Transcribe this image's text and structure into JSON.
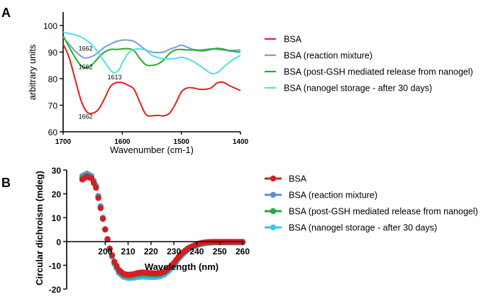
{
  "chart_data": [
    {
      "panel_label": "A",
      "type": "line",
      "xlabel": "Wavenumber (cm-1)",
      "ylabel": "arbitrary units",
      "xlim": [
        1700,
        1400
      ],
      "ylim": [
        60,
        100
      ],
      "x_reversed": true,
      "xticks": [
        1700,
        1600,
        1500,
        1400
      ],
      "yticks": [
        60,
        70,
        80,
        90,
        100
      ],
      "legend": "right",
      "series": [
        {
          "name": "BSA",
          "color": "#e0201d",
          "x": [
            1700,
            1690,
            1680,
            1670,
            1660,
            1650,
            1640,
            1630,
            1620,
            1610,
            1600,
            1590,
            1580,
            1570,
            1560,
            1550,
            1540,
            1530,
            1520,
            1510,
            1500,
            1490,
            1480,
            1470,
            1460,
            1450,
            1440,
            1430,
            1420,
            1410,
            1400
          ],
          "y": [
            93,
            88,
            80,
            72,
            67.5,
            67,
            68.5,
            72.5,
            77,
            78.5,
            78.5,
            77.5,
            76,
            71,
            66.5,
            66,
            66.2,
            66,
            67,
            70.5,
            75,
            76.5,
            76.5,
            76,
            76,
            76.5,
            78.3,
            78.7,
            77.5,
            76.5,
            75.5
          ]
        },
        {
          "name": "BSA (reaction mixture)",
          "color": "#6f9fdc",
          "x": [
            1700,
            1690,
            1680,
            1670,
            1662,
            1650,
            1640,
            1630,
            1620,
            1610,
            1600,
            1590,
            1580,
            1570,
            1560,
            1550,
            1540,
            1530,
            1520,
            1510,
            1500,
            1490,
            1480,
            1470,
            1460,
            1450,
            1440,
            1430,
            1420,
            1410,
            1400
          ],
          "y": [
            95.5,
            93,
            90.5,
            88.5,
            87.8,
            88.5,
            90,
            91.8,
            93,
            94,
            94.5,
            94.5,
            94,
            92.5,
            90.8,
            90,
            89.8,
            90,
            91,
            91.8,
            92.6,
            91.8,
            91,
            90.8,
            91,
            91.2,
            91,
            90.8,
            90.6,
            90.7,
            90.8
          ]
        },
        {
          "name": "BSA (post-GSH mediated release from nanogel)",
          "color": "#22b022",
          "x": [
            1700,
            1690,
            1680,
            1670,
            1662,
            1650,
            1640,
            1630,
            1620,
            1610,
            1600,
            1590,
            1580,
            1570,
            1560,
            1550,
            1540,
            1530,
            1520,
            1510,
            1500,
            1490,
            1480,
            1470,
            1460,
            1450,
            1440,
            1430,
            1420,
            1410,
            1400
          ],
          "y": [
            96,
            92,
            88,
            85,
            84,
            85.5,
            88,
            90,
            91,
            91,
            91.2,
            91.3,
            90.5,
            87.5,
            85.2,
            85,
            85.5,
            87,
            89.5,
            90.8,
            91,
            90.8,
            90.8,
            90.5,
            90.5,
            91,
            91.4,
            91.2,
            90.5,
            90.2,
            90
          ]
        },
        {
          "name": "BSA (nanogel storage - after 30 days)",
          "color": "#4fe0e2",
          "x": [
            1700,
            1690,
            1680,
            1670,
            1660,
            1650,
            1640,
            1630,
            1620,
            1613,
            1605,
            1600,
            1590,
            1580,
            1570,
            1560,
            1550,
            1540,
            1530,
            1520,
            1510,
            1500,
            1490,
            1480,
            1470,
            1460,
            1450,
            1440,
            1430,
            1420,
            1410,
            1400
          ],
          "y": [
            97.5,
            97,
            96.5,
            95.7,
            94.3,
            92.5,
            89.5,
            86.3,
            83.2,
            82.2,
            83.5,
            86,
            89.5,
            91,
            91.2,
            90.6,
            88.8,
            88,
            87.5,
            87.4,
            87.6,
            88,
            87.5,
            86.5,
            85,
            83.5,
            82,
            82.2,
            84,
            86,
            87.5,
            88.8
          ]
        }
      ],
      "annotations": [
        {
          "text": "1662",
          "x": 1662,
          "y": 90.5
        },
        {
          "text": "1662",
          "x": 1662,
          "y": 83.6
        },
        {
          "text": "1613",
          "x": 1613,
          "y": 79.7
        },
        {
          "text": "1662",
          "x": 1662,
          "y": 65
        }
      ]
    },
    {
      "panel_label": "B",
      "type": "scatter",
      "xlabel": "Wavelength (nm)",
      "ylabel": "Circular dichroism (mdeg)",
      "xlim": [
        190,
        260
      ],
      "ylim": [
        -20,
        30
      ],
      "xticks": [
        200,
        210,
        220,
        230,
        240,
        250,
        260
      ],
      "yticks": [
        -20,
        -10,
        0,
        10,
        20,
        30
      ],
      "legend": "right",
      "series": [
        {
          "name": "BSA",
          "color": "#d11f25",
          "x": [
            190,
            192,
            194,
            196,
            198,
            200,
            202,
            204,
            206,
            208,
            210,
            212,
            214,
            216,
            218,
            220,
            222,
            224,
            226,
            228,
            230,
            232,
            234,
            236,
            238,
            240,
            242,
            244,
            246,
            248,
            250,
            252,
            254,
            256,
            258,
            260
          ],
          "y": [
            26,
            27.3,
            26.5,
            22.5,
            14,
            5,
            -3,
            -8.5,
            -12,
            -13.6,
            -14,
            -13.8,
            -13.3,
            -13,
            -13.1,
            -13.3,
            -13.4,
            -13.2,
            -12.5,
            -11,
            -9,
            -6.5,
            -4.5,
            -3,
            -2,
            -1.2,
            -0.6,
            -0.3,
            -0.2,
            -0.2,
            -0.2,
            -0.2,
            -0.2,
            -0.2,
            -0.2,
            -0.2
          ]
        },
        {
          "name": "BSA (reaction mixture)",
          "color": "#5f8fd8",
          "x": [
            190,
            192,
            194,
            196,
            198,
            200,
            202,
            204,
            206,
            208,
            210,
            212,
            214,
            216,
            218,
            220,
            222,
            224,
            226,
            228,
            230,
            232,
            234,
            236,
            238,
            240,
            242,
            244,
            246,
            248,
            250,
            252,
            254,
            256,
            258,
            260
          ],
          "y": [
            27.5,
            28.5,
            27.5,
            23.5,
            14.8,
            5.2,
            -3.2,
            -9.2,
            -13,
            -14.6,
            -15,
            -14.8,
            -14.3,
            -14,
            -14.1,
            -14.2,
            -14.2,
            -14,
            -13.2,
            -11.6,
            -9.5,
            -7,
            -5,
            -3.4,
            -2.2,
            -1.5,
            -1,
            -0.6,
            -0.4,
            -0.3,
            -0.3,
            -0.3,
            -0.3,
            -0.3,
            -0.3,
            -0.3
          ]
        },
        {
          "name": "BSA (post-GSH mediated release from nanogel)",
          "color": "#24a84a",
          "x": [
            190,
            192,
            194,
            196,
            198,
            200,
            202,
            204,
            206,
            208,
            210,
            212,
            214,
            216,
            218,
            220,
            222,
            224,
            226,
            228,
            230,
            232,
            234,
            236,
            238,
            240,
            242,
            244,
            246,
            248,
            250,
            252,
            254,
            256,
            258,
            260
          ],
          "y": [
            26.5,
            27.5,
            26.8,
            22.8,
            14.2,
            5,
            -3,
            -8.8,
            -12.4,
            -14,
            -14.4,
            -14.2,
            -13.7,
            -13.5,
            -13.6,
            -13.7,
            -13.8,
            -13.6,
            -12.8,
            -11.3,
            -9.3,
            -6.8,
            -4.8,
            -3.2,
            -2.1,
            -1.4,
            -0.8,
            -0.5,
            -0.3,
            -0.2,
            -0.2,
            -0.2,
            -0.2,
            -0.2,
            -0.2,
            -0.2
          ]
        },
        {
          "name": "BSA (nanogel storage - after 30 days)",
          "color": "#3fc3f0",
          "x": [
            190,
            192,
            194,
            196,
            198,
            200,
            202,
            204,
            206,
            208,
            210,
            212,
            214,
            216,
            218,
            220,
            222,
            224,
            226,
            228,
            230,
            232,
            234,
            236,
            238,
            240,
            242,
            244,
            246,
            248,
            250,
            252,
            254,
            256,
            258,
            260
          ],
          "y": [
            27,
            28,
            27.2,
            23,
            14.5,
            5,
            -3.4,
            -9.4,
            -13.2,
            -14.8,
            -15.4,
            -15.3,
            -15,
            -14.8,
            -14.9,
            -15,
            -15,
            -14.7,
            -13.8,
            -12.2,
            -10,
            -7.4,
            -5.3,
            -3.6,
            -2.4,
            -1.6,
            -1.1,
            -0.7,
            -0.5,
            -0.4,
            -0.4,
            -0.4,
            -0.4,
            -0.4,
            -0.4,
            -0.4
          ]
        }
      ]
    }
  ]
}
